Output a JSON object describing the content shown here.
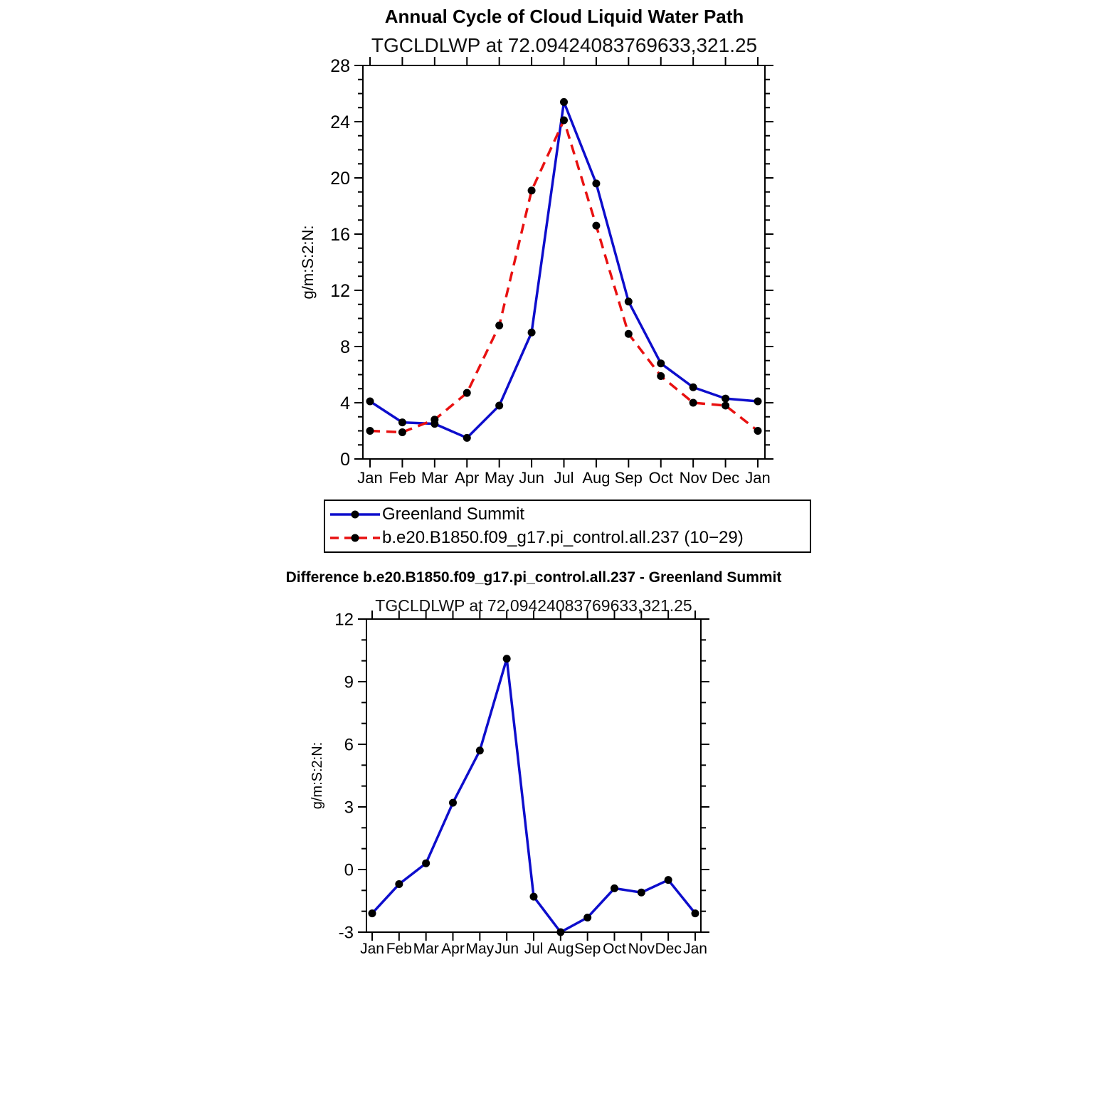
{
  "page": {
    "background": "#ffffff",
    "text_color": "#000000"
  },
  "chart_data": [
    {
      "type": "line",
      "title": "Annual Cycle of Cloud Liquid Water Path",
      "subtitle": "TGCLDLWP at 72.09424083769633,321.25",
      "ylabel": "g/m:S:2:N:",
      "xlabel": "",
      "categories": [
        "Jan",
        "Feb",
        "Mar",
        "Apr",
        "May",
        "Jun",
        "Jul",
        "Aug",
        "Sep",
        "Oct",
        "Nov",
        "Dec",
        "Jan"
      ],
      "ylim": [
        0,
        28
      ],
      "ytick_step": 4,
      "yminor_step": 1,
      "grid": false,
      "legend_position": "below",
      "marker_color": "#000000",
      "series": [
        {
          "name": "Greenland Summit",
          "color": "#0d0dcc",
          "style": "solid",
          "values": [
            4.1,
            2.6,
            2.5,
            1.5,
            3.8,
            9.0,
            25.4,
            19.6,
            11.2,
            6.8,
            5.1,
            4.3,
            4.1
          ]
        },
        {
          "name": "b.e20.B1850.f09_g17.pi_control.all.237 (10−29)",
          "color": "#e81010",
          "style": "dashed",
          "values": [
            2.0,
            1.9,
            2.8,
            4.7,
            9.5,
            19.1,
            24.1,
            16.6,
            8.9,
            5.9,
            4.0,
            3.8,
            2.0
          ]
        }
      ]
    },
    {
      "type": "line",
      "title": "Difference b.e20.B1850.f09_g17.pi_control.all.237 - Greenland Summit",
      "subtitle": "TGCLDLWP at 72.09424083769633,321.25",
      "ylabel": "g/m:S:2:N:",
      "xlabel": "",
      "categories": [
        "Jan",
        "Feb",
        "Mar",
        "Apr",
        "May",
        "Jun",
        "Jul",
        "Aug",
        "Sep",
        "Oct",
        "Nov",
        "Dec",
        "Jan"
      ],
      "ylim": [
        -3,
        12
      ],
      "ytick_step": 3,
      "yminor_step": 1,
      "grid": false,
      "legend_position": "none",
      "marker_color": "#000000",
      "series": [
        {
          "name": "b.e20.B1850.f09_g17.pi_control.all.237 - Greenland Summit",
          "color": "#0d0dcc",
          "style": "solid",
          "values": [
            -2.1,
            -0.7,
            0.3,
            3.2,
            5.7,
            10.1,
            -1.3,
            -3.0,
            -2.3,
            -0.9,
            -1.1,
            -0.5,
            -2.1
          ]
        }
      ]
    }
  ]
}
